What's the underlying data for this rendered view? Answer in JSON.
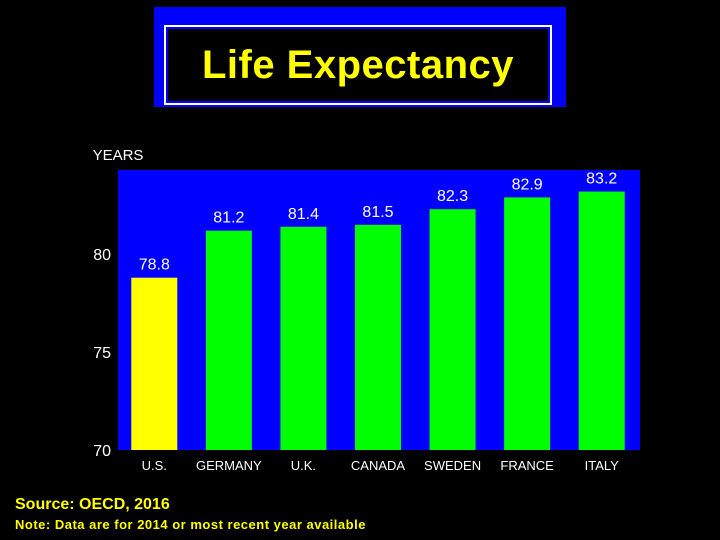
{
  "title": "Life Expectancy",
  "colors": {
    "background": "#000000",
    "plot_area": "#0000ff",
    "highlight_bar": "#ffff00",
    "bar": "#00ff00",
    "title_text": "#ffff00"
  },
  "footer": {
    "source": "Source: OECD, 2016",
    "note": "Note: Data are for 2014 or most recent year available"
  },
  "chart_data": {
    "type": "bar",
    "categories": [
      "U.S.",
      "GERMANY",
      "U.K.",
      "CANADA",
      "SWEDEN",
      "FRANCE",
      "ITALY"
    ],
    "values": [
      78.8,
      81.2,
      81.4,
      81.5,
      82.3,
      82.9,
      83.2
    ],
    "data_labels": [
      "78.8",
      "81.2",
      "81.4",
      "81.5",
      "82.3",
      "82.9",
      "83.2"
    ],
    "ylabel": "YEARS",
    "ylim": [
      70,
      84.3
    ],
    "yticks": [
      70,
      75,
      80
    ],
    "highlight_index": 0,
    "grid": false
  }
}
